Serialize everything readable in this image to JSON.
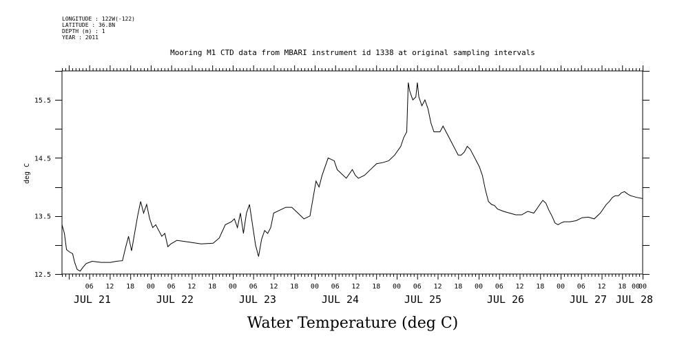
{
  "header": {
    "lines": [
      "LONGITUDE : 122W(-122)",
      "LATITUDE : 36.8N",
      "DEPTH (m) : 1",
      "YEAR : 2011"
    ]
  },
  "chart_data": {
    "type": "line",
    "title": "Mooring M1 CTD data from MBARI instrument id 1338 at original sampling intervals",
    "xlabel": "Water Temperature (deg C)",
    "ylabel": "deg C",
    "ylim": [
      12.5,
      16.0
    ],
    "xlim_hours": [
      0,
      170
    ],
    "y_ticks": [
      "12.5",
      "13.5",
      "14.5",
      "15.5"
    ],
    "x_hour_labels": [
      "06",
      "12",
      "18",
      "00",
      "06",
      "12",
      "18",
      "00",
      "06",
      "12",
      "18",
      "00",
      "06",
      "12",
      "18",
      "00",
      "06",
      "12",
      "18",
      "00",
      "06",
      "12",
      "18",
      "00",
      "06",
      "12",
      "18",
      "00",
      "00"
    ],
    "day_labels": [
      "JUL 21",
      "JUL 22",
      "JUL 23",
      "JUL 24",
      "JUL 25",
      "JUL 26",
      "JUL 27",
      "JUL 28"
    ],
    "x_axis_unit": "hours since JUL 20 22:00",
    "series": [
      {
        "points": [
          [
            0,
            13.35
          ],
          [
            0.8,
            13.2
          ],
          [
            1.5,
            12.92
          ],
          [
            2.5,
            12.88
          ],
          [
            3.5,
            12.85
          ],
          [
            4.2,
            12.7
          ],
          [
            5,
            12.58
          ],
          [
            6,
            12.55
          ],
          [
            7,
            12.62
          ],
          [
            8,
            12.68
          ],
          [
            10,
            12.72
          ],
          [
            13,
            12.7
          ],
          [
            16,
            12.7
          ],
          [
            18,
            12.72
          ],
          [
            20,
            12.73
          ],
          [
            21,
            12.95
          ],
          [
            22,
            13.15
          ],
          [
            23,
            12.9
          ],
          [
            24,
            13.2
          ],
          [
            25,
            13.5
          ],
          [
            26,
            13.75
          ],
          [
            27,
            13.55
          ],
          [
            28,
            13.7
          ],
          [
            29,
            13.45
          ],
          [
            30,
            13.3
          ],
          [
            31,
            13.35
          ],
          [
            32,
            13.25
          ],
          [
            33,
            13.15
          ],
          [
            34,
            13.2
          ],
          [
            35,
            12.97
          ],
          [
            36,
            13.02
          ],
          [
            38,
            13.08
          ],
          [
            42,
            13.05
          ],
          [
            46,
            13.02
          ],
          [
            50,
            13.03
          ],
          [
            52,
            13.12
          ],
          [
            54,
            13.35
          ],
          [
            56,
            13.4
          ],
          [
            57,
            13.45
          ],
          [
            58,
            13.3
          ],
          [
            59,
            13.55
          ],
          [
            60,
            13.2
          ],
          [
            61,
            13.55
          ],
          [
            62,
            13.7
          ],
          [
            63,
            13.35
          ],
          [
            64,
            13.0
          ],
          [
            65,
            12.8
          ],
          [
            66,
            13.1
          ],
          [
            67,
            13.25
          ],
          [
            68,
            13.2
          ],
          [
            69,
            13.3
          ],
          [
            70,
            13.55
          ],
          [
            72,
            13.6
          ],
          [
            74,
            13.65
          ],
          [
            76,
            13.65
          ],
          [
            78,
            13.55
          ],
          [
            80,
            13.45
          ],
          [
            82,
            13.5
          ],
          [
            84,
            14.1
          ],
          [
            85,
            14.0
          ],
          [
            86,
            14.2
          ],
          [
            88,
            14.5
          ],
          [
            90,
            14.45
          ],
          [
            91,
            14.3
          ],
          [
            92,
            14.25
          ],
          [
            93,
            14.2
          ],
          [
            94,
            14.15
          ],
          [
            96,
            14.3
          ],
          [
            97,
            14.2
          ],
          [
            98,
            14.15
          ],
          [
            100,
            14.2
          ],
          [
            102,
            14.3
          ],
          [
            104,
            14.4
          ],
          [
            106,
            14.42
          ],
          [
            108,
            14.45
          ],
          [
            110,
            14.55
          ],
          [
            112,
            14.7
          ],
          [
            113,
            14.85
          ],
          [
            114,
            14.95
          ],
          [
            114.5,
            15.8
          ],
          [
            115,
            15.65
          ],
          [
            116,
            15.5
          ],
          [
            117,
            15.55
          ],
          [
            117.5,
            15.8
          ],
          [
            118,
            15.55
          ],
          [
            119,
            15.4
          ],
          [
            120,
            15.5
          ],
          [
            121,
            15.35
          ],
          [
            122,
            15.1
          ],
          [
            123,
            14.95
          ],
          [
            124,
            14.95
          ],
          [
            125,
            14.95
          ],
          [
            126,
            15.05
          ],
          [
            127,
            14.95
          ],
          [
            128,
            14.85
          ],
          [
            129,
            14.75
          ],
          [
            130,
            14.65
          ],
          [
            131,
            14.55
          ],
          [
            132,
            14.55
          ],
          [
            133,
            14.6
          ],
          [
            134,
            14.7
          ],
          [
            135,
            14.65
          ],
          [
            136,
            14.55
          ],
          [
            137,
            14.45
          ],
          [
            138,
            14.35
          ],
          [
            139,
            14.2
          ],
          [
            140,
            13.95
          ],
          [
            141,
            13.75
          ],
          [
            142,
            13.7
          ],
          [
            143,
            13.68
          ],
          [
            144,
            13.62
          ],
          [
            146,
            13.58
          ],
          [
            148,
            13.55
          ],
          [
            150,
            13.52
          ],
          [
            152,
            13.52
          ],
          [
            154,
            13.58
          ],
          [
            156,
            13.55
          ],
          [
            157,
            13.62
          ],
          [
            158,
            13.7
          ],
          [
            159,
            13.77
          ],
          [
            160,
            13.72
          ],
          [
            161,
            13.6
          ],
          [
            162,
            13.5
          ],
          [
            163,
            13.38
          ],
          [
            164,
            13.35
          ],
          [
            165,
            13.38
          ],
          [
            166,
            13.4
          ],
          [
            168,
            13.4
          ],
          [
            170,
            13.42
          ],
          [
            172,
            13.47
          ],
          [
            174,
            13.48
          ],
          [
            176,
            13.45
          ],
          [
            178,
            13.55
          ],
          [
            180,
            13.7
          ],
          [
            181,
            13.75
          ],
          [
            182,
            13.82
          ],
          [
            183,
            13.85
          ],
          [
            184,
            13.85
          ],
          [
            185,
            13.9
          ],
          [
            186,
            13.92
          ],
          [
            187,
            13.88
          ],
          [
            188,
            13.85
          ],
          [
            190,
            13.82
          ],
          [
            192,
            13.8
          ]
        ]
      }
    ]
  }
}
